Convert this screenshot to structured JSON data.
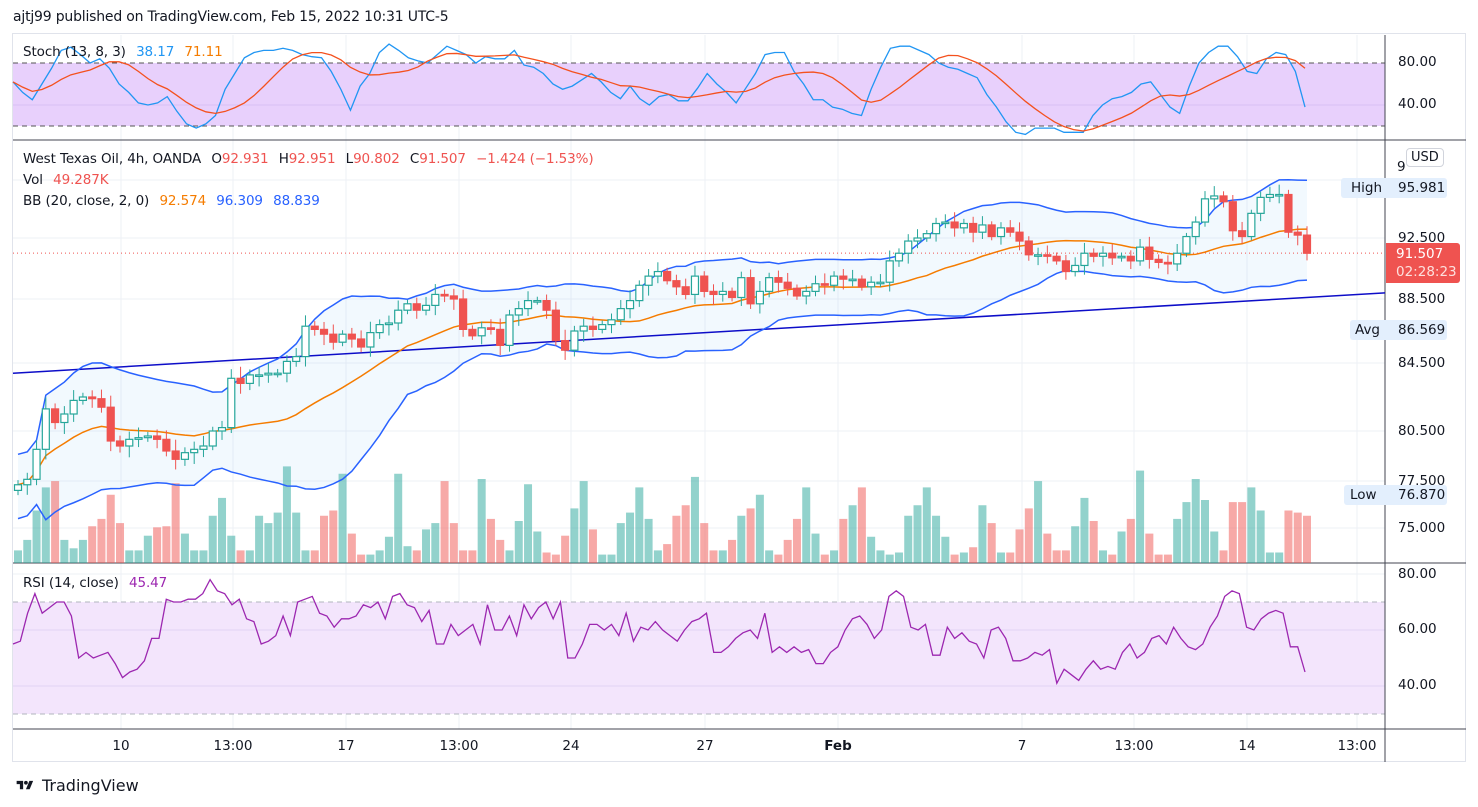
{
  "header": {
    "published": "ajtj99 published on TradingView.com, Feb 15, 2022 10:31 UTC-5"
  },
  "stoch": {
    "label": "Stoch (13, 8, 3)",
    "k": "38.17",
    "d": "71.11",
    "ticks": [
      "80.00",
      "40.00"
    ]
  },
  "main": {
    "symbol": "West Texas Oil, 4h, OANDA",
    "o_label": "O",
    "o": "92.931",
    "h_label": "H",
    "h": "92.951",
    "l_label": "L",
    "l": "90.802",
    "c_label": "C",
    "c": "91.507",
    "change": "−1.424 (−1.53%)",
    "vol_label": "Vol",
    "vol": "49.287K",
    "bb_label": "BB (20, close, 2, 0)",
    "bb_basis": "92.574",
    "bb_upper": "96.309",
    "bb_lower": "88.839",
    "currency": "USD",
    "price_ticks": [
      "92.500",
      "88.500",
      "84.500",
      "80.500",
      "77.500",
      "75.000"
    ],
    "top_tick_partial": "9",
    "high_label": "High",
    "high_value": "95.981",
    "avg_label": "Avg",
    "avg_value": "86.569",
    "low_label": "Low",
    "low_value": "76.870",
    "last_price": "91.507",
    "countdown": "02:28:23"
  },
  "rsi": {
    "label": "RSI (14, close)",
    "value": "45.47",
    "ticks": [
      "80.00",
      "60.00",
      "40.00"
    ]
  },
  "xaxis": {
    "labels": [
      "10",
      "13:00",
      "17",
      "13:00",
      "24",
      "27",
      "Feb",
      "7",
      "13:00",
      "14",
      "13:00"
    ]
  },
  "footer": {
    "brand": "TradingView"
  },
  "colors": {
    "up": "#26a69a",
    "down": "#ef5350",
    "bb_basis": "#f57c00",
    "bb_band": "#2962ff",
    "trendline": "#0d0dc8",
    "stoch_k": "#2196f3",
    "stoch_d": "#f4511e",
    "rsi": "#9c27b0"
  },
  "chart_data": {
    "type": "candlestick",
    "title": "West Texas Oil, 4h, OANDA",
    "ylabel": "USD",
    "ylim": [
      74,
      97
    ],
    "closes": [
      77.3,
      77.6,
      79.4,
      81.8,
      81.0,
      81.5,
      82.3,
      82.5,
      82.4,
      81.9,
      79.9,
      79.6,
      80.0,
      80.1,
      80.2,
      80.0,
      79.3,
      78.8,
      79.2,
      79.4,
      79.6,
      80.5,
      80.7,
      83.6,
      83.3,
      83.8,
      83.8,
      83.9,
      83.9,
      84.6,
      84.9,
      86.8,
      86.6,
      86.3,
      85.8,
      86.3,
      86.0,
      85.5,
      86.4,
      86.9,
      87.0,
      87.8,
      88.2,
      87.8,
      88.1,
      88.8,
      88.7,
      88.5,
      86.6,
      86.2,
      86.7,
      86.6,
      85.6,
      87.5,
      87.9,
      88.4,
      88.4,
      87.8,
      85.9,
      85.3,
      86.5,
      86.8,
      86.6,
      86.9,
      87.2,
      87.9,
      88.4,
      89.4,
      90.0,
      90.3,
      89.7,
      89.3,
      88.8,
      90.0,
      89.0,
      88.8,
      89.0,
      88.6,
      89.9,
      88.2,
      89.0,
      89.9,
      89.6,
      89.2,
      88.7,
      89.0,
      89.5,
      89.4,
      90.0,
      89.8,
      89.8,
      89.3,
      89.6,
      89.6,
      91.0,
      91.5,
      92.3,
      92.5,
      92.8,
      93.5,
      93.6,
      93.2,
      93.5,
      92.9,
      93.4,
      92.6,
      93.2,
      92.9,
      92.3,
      91.4,
      91.4,
      91.3,
      91.0,
      90.3,
      90.7,
      91.5,
      91.3,
      91.5,
      91.2,
      91.3,
      91.0,
      91.9,
      91.1,
      90.9,
      90.8,
      91.5,
      92.6,
      93.6,
      95.2,
      95.4,
      95.0,
      93.0,
      92.6,
      94.2,
      95.3,
      95.5,
      95.5,
      92.9,
      92.7,
      91.5
    ],
    "volume_relative": [
      0.12,
      0.22,
      0.5,
      0.72,
      0.78,
      0.22,
      0.14,
      0.22,
      0.35,
      0.42,
      0.65,
      0.38,
      0.12,
      0.12,
      0.26,
      0.34,
      0.35,
      0.76,
      0.28,
      0.12,
      0.12,
      0.45,
      0.62,
      0.26,
      0.12,
      0.12,
      0.45,
      0.38,
      0.48,
      0.92,
      0.48,
      0.12,
      0.12,
      0.45,
      0.5,
      0.85,
      0.28,
      0.08,
      0.08,
      0.12,
      0.25,
      0.85,
      0.16,
      0.12,
      0.32,
      0.38,
      0.78,
      0.38,
      0.12,
      0.12,
      0.8,
      0.42,
      0.22,
      0.12,
      0.4,
      0.75,
      0.3,
      0.1,
      0.08,
      0.26,
      0.52,
      0.78,
      0.32,
      0.08,
      0.08,
      0.38,
      0.48,
      0.72,
      0.42,
      0.12,
      0.18,
      0.45,
      0.55,
      0.82,
      0.38,
      0.12,
      0.12,
      0.22,
      0.45,
      0.52,
      0.65,
      0.12,
      0.08,
      0.22,
      0.42,
      0.72,
      0.28,
      0.08,
      0.12,
      0.42,
      0.55,
      0.72,
      0.25,
      0.12,
      0.08,
      0.1,
      0.45,
      0.55,
      0.72,
      0.45,
      0.25,
      0.08,
      0.1,
      0.15,
      0.55,
      0.38,
      0.1,
      0.1,
      0.32,
      0.52,
      0.78,
      0.28,
      0.12,
      0.12,
      0.35,
      0.62,
      0.4,
      0.12,
      0.08,
      0.3,
      0.42,
      0.88,
      0.28,
      0.08,
      0.08,
      0.42,
      0.58,
      0.8,
      0.6,
      0.3,
      0.12,
      0.58,
      0.58,
      0.72,
      0.5,
      0.1,
      0.1,
      0.5,
      0.48,
      0.45
    ]
  },
  "stoch_data": {
    "k": [
      62,
      52,
      45,
      60,
      75,
      92,
      95,
      88,
      80,
      84,
      75,
      60,
      52,
      42,
      40,
      42,
      48,
      34,
      22,
      18,
      22,
      30,
      55,
      70,
      85,
      90,
      92,
      92,
      94,
      92,
      88,
      86,
      85,
      72,
      55,
      35,
      58,
      70,
      90,
      98,
      92,
      85,
      82,
      80,
      88,
      96,
      92,
      88,
      80,
      86,
      84,
      84,
      92,
      78,
      76,
      70,
      60,
      55,
      58,
      64,
      70,
      62,
      52,
      46,
      58,
      46,
      40,
      48,
      50,
      44,
      44,
      56,
      70,
      60,
      52,
      42,
      56,
      70,
      88,
      90,
      90,
      72,
      60,
      45,
      45,
      38,
      36,
      32,
      30,
      55,
      76,
      94,
      96,
      96,
      92,
      88,
      80,
      76,
      74,
      70,
      66,
      50,
      38,
      24,
      14,
      12,
      18,
      18,
      18,
      14,
      14,
      14,
      30,
      40,
      46,
      48,
      52,
      60,
      62,
      50,
      38,
      32,
      58,
      80,
      90,
      96,
      96,
      86,
      72,
      70,
      84,
      90,
      88,
      72,
      38
    ]
  },
  "rsi_data": {
    "values": [
      55,
      56,
      66,
      73,
      66,
      68,
      70,
      70,
      65,
      50,
      52,
      50,
      51,
      52,
      48,
      43,
      45,
      46,
      49,
      57,
      57,
      71,
      70,
      70,
      71,
      71,
      73,
      78,
      74,
      73,
      69,
      71,
      64,
      63,
      55,
      56,
      58,
      65,
      58,
      70,
      71,
      72,
      66,
      65,
      61,
      64,
      64,
      65,
      69,
      68,
      70,
      64,
      72,
      73,
      69,
      68,
      63,
      67,
      55,
      55,
      62,
      58,
      60,
      62,
      55,
      69,
      60,
      60,
      65,
      58,
      69,
      64,
      68,
      70,
      64,
      70,
      50,
      50,
      55,
      62,
      62,
      60,
      62,
      58,
      66,
      56,
      61,
      60,
      63,
      60,
      58,
      56,
      60,
      63,
      64,
      66,
      52,
      52,
      54,
      57,
      59,
      60,
      57,
      66,
      52,
      54,
      52,
      54,
      52,
      53,
      48,
      48,
      52,
      54,
      60,
      64,
      65,
      62,
      57,
      60,
      72,
      74,
      72,
      61,
      60,
      62,
      51,
      51,
      61,
      57,
      59,
      56,
      55,
      50,
      60,
      61,
      57,
      49,
      49,
      50,
      52,
      51,
      53,
      41,
      46,
      44,
      42,
      46,
      49,
      46,
      47,
      46,
      52,
      55,
      50,
      52,
      57,
      58,
      55,
      61,
      57,
      54,
      53,
      55,
      61,
      65,
      72,
      74,
      73,
      61,
      60,
      64,
      66,
      67,
      66,
      54,
      54,
      45
    ]
  },
  "trendline": {
    "start_price": 83.9,
    "end_price": 88.9
  }
}
